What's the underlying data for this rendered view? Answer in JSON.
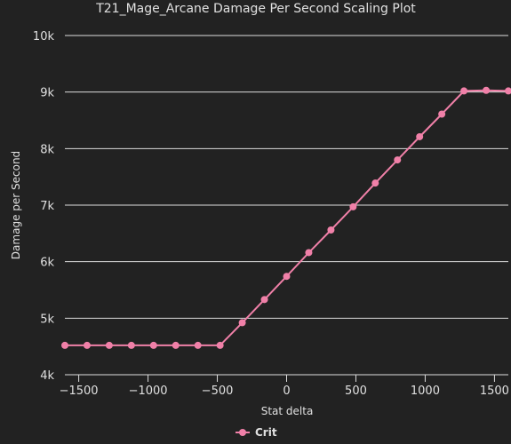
{
  "chart_data": {
    "type": "line",
    "title": "T21_Mage_Arcane Damage Per Second Scaling Plot",
    "xlabel": "Stat delta",
    "ylabel": "Damage per Second",
    "xlim": [
      -1600,
      1600
    ],
    "ylim": [
      4000,
      10000
    ],
    "x_ticks": [
      {
        "value": -1500,
        "label": "−1500"
      },
      {
        "value": -1000,
        "label": "−1000"
      },
      {
        "value": -500,
        "label": "−500"
      },
      {
        "value": 0,
        "label": "0"
      },
      {
        "value": 500,
        "label": "500"
      },
      {
        "value": 1000,
        "label": "1000"
      },
      {
        "value": 1500,
        "label": "1500"
      }
    ],
    "y_ticks": [
      {
        "value": 4000,
        "label": "4k"
      },
      {
        "value": 5000,
        "label": "5k"
      },
      {
        "value": 6000,
        "label": "6k"
      },
      {
        "value": 7000,
        "label": "7k"
      },
      {
        "value": 8000,
        "label": "8k"
      },
      {
        "value": 9000,
        "label": "9k"
      },
      {
        "value": 10000,
        "label": "10k"
      }
    ],
    "grid": "horizontal",
    "legend_position": "bottom-center",
    "series": [
      {
        "name": "Crit",
        "color": "#f080a8",
        "x": [
          -1600,
          -1440,
          -1280,
          -1120,
          -960,
          -800,
          -640,
          -480,
          -320,
          -160,
          0,
          160,
          320,
          480,
          640,
          800,
          960,
          1120,
          1280,
          1440,
          1600
        ],
        "y": [
          4520,
          4520,
          4520,
          4520,
          4520,
          4520,
          4520,
          4520,
          4920,
          5330,
          5740,
          6160,
          6560,
          6970,
          7390,
          7800,
          8210,
          8610,
          9020,
          9030,
          9020
        ]
      }
    ]
  },
  "colors": {
    "background": "#222222",
    "grid": "#dddddd",
    "text": "#e0e0e0"
  }
}
